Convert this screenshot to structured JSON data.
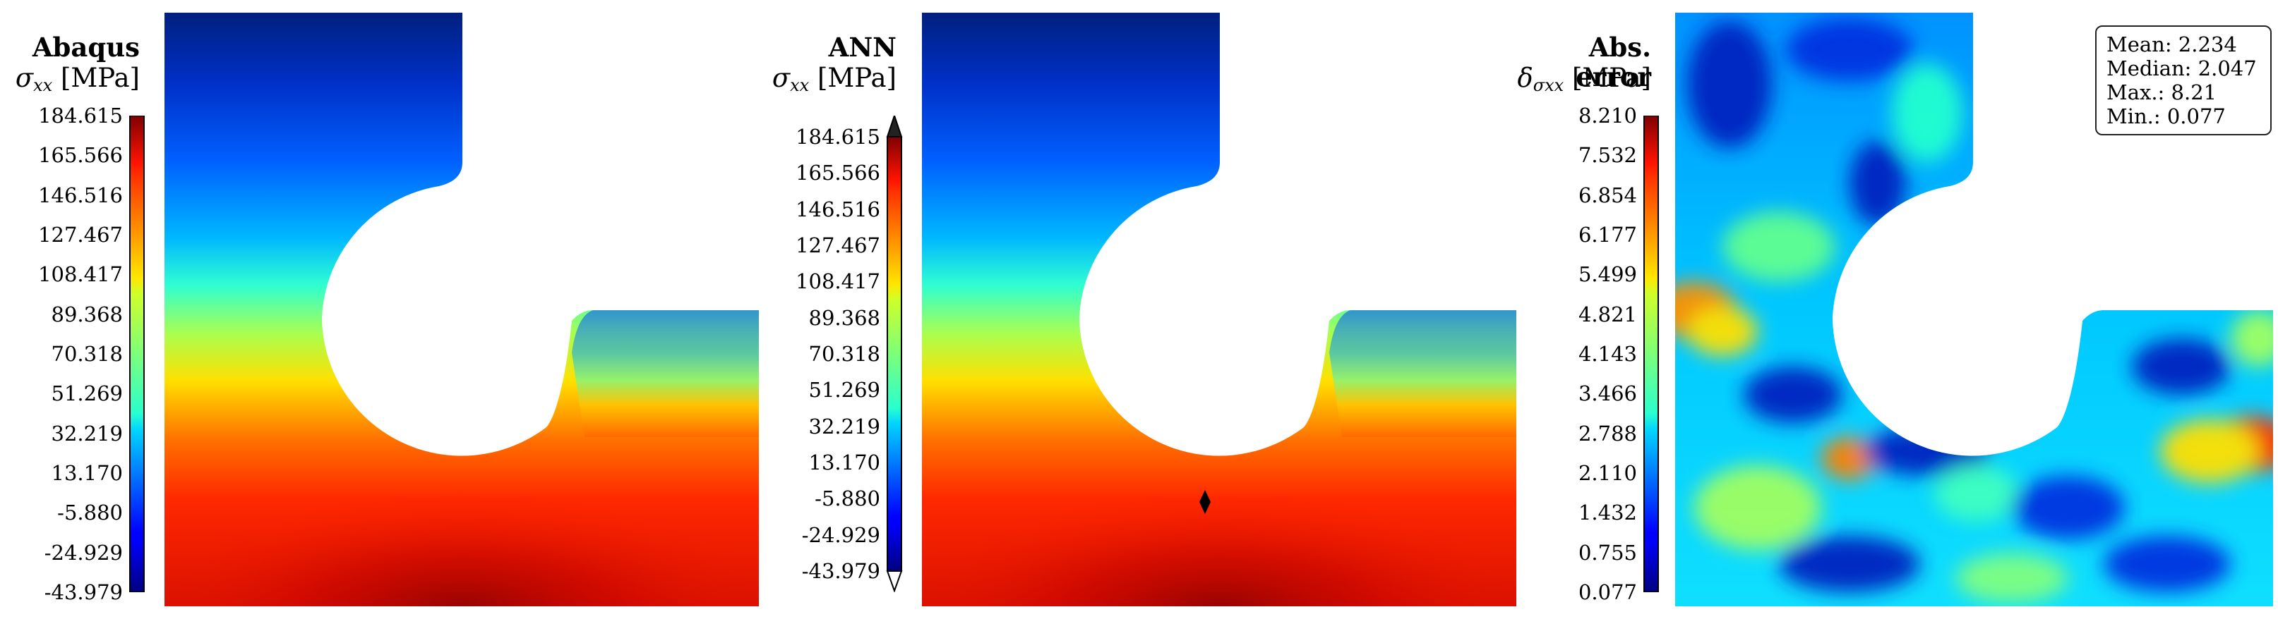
{
  "panels": [
    {
      "title": "Abaqus",
      "quantity": {
        "symbol": "σ",
        "sub": "xx",
        "unit": "[MPa]"
      },
      "colorbar_ticks": [
        "184.615",
        "165.566",
        "146.516",
        "127.467",
        "108.417",
        "89.368",
        "70.318",
        "51.269",
        "32.219",
        "13.170",
        "-5.880",
        "-24.929",
        "-43.979"
      ]
    },
    {
      "title": "ANN",
      "quantity": {
        "symbol": "σ",
        "sub": "xx",
        "unit": "[MPa]"
      },
      "colorbar_ticks": [
        "184.615",
        "165.566",
        "146.516",
        "127.467",
        "108.417",
        "89.368",
        "70.318",
        "51.269",
        "32.219",
        "13.170",
        "-5.880",
        "-24.929",
        "-43.979"
      ]
    },
    {
      "title": "Abs. error",
      "quantity": {
        "symbol": "δ",
        "sub": "σxx",
        "unit": "[MPa]"
      },
      "colorbar_ticks": [
        "8.210",
        "7.532",
        "6.854",
        "6.177",
        "5.499",
        "4.821",
        "4.143",
        "3.466",
        "2.788",
        "2.110",
        "1.432",
        "0.755",
        "0.077"
      ]
    }
  ],
  "stats": {
    "mean": "Mean: 2.234",
    "median": "Median: 2.047",
    "max": "Max.: 8.21",
    "min": "Min.: 0.077"
  },
  "chart_data": [
    {
      "type": "heatmap",
      "title": "Abaqus",
      "label": "σxx [MPa]",
      "colormap": "jet",
      "range": [
        -43.979,
        184.615
      ]
    },
    {
      "type": "heatmap",
      "title": "ANN",
      "label": "σxx [MPa]",
      "colormap": "jet",
      "range": [
        -43.979,
        184.615
      ],
      "colorbar_extend": "both"
    },
    {
      "type": "heatmap",
      "title": "Abs. error",
      "label": "δσxx [MPa]",
      "colormap": "jet",
      "range": [
        0.077,
        8.21
      ],
      "stats": {
        "mean": 2.234,
        "median": 2.047,
        "max": 8.21,
        "min": 0.077
      }
    }
  ]
}
